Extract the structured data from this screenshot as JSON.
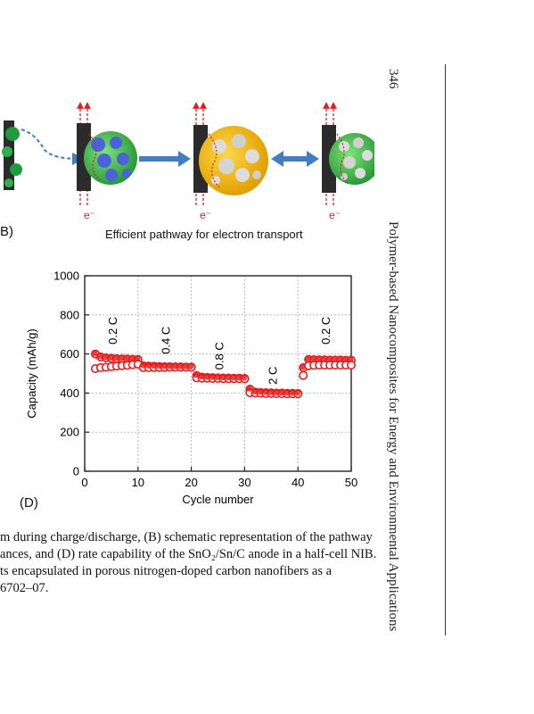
{
  "header": {
    "page_number": "346",
    "book_title": "Polymer-based Nanocomposites for Energy and Environmental Applications"
  },
  "panel_b": {
    "label": "B)",
    "caption": "Efficient pathway for electron transport",
    "electron_label": "e⁻"
  },
  "panel_d": {
    "label": "(D)"
  },
  "caption_lines": [
    "m during charge/discharge, (B) schematic representation of the pathway",
    "ances, and (D) rate capability of the SnO₂/Sn/C anode in a half-cell NIB.",
    "ts encapsulated in porous nitrogen-doped carbon nanofibers as a",
    "6702–07."
  ],
  "colors": {
    "marker_red": "#e11d1d",
    "arrow_blue": "#3f7fc1",
    "green_sphere": "#3fbf4f",
    "gold_sphere": "#f2b90f",
    "particle_blue": "#4a63d8"
  },
  "chart_data": {
    "type": "scatter",
    "xlabel": "Cycle number",
    "ylabel": "Capacity (mAh/g)",
    "xlim": [
      0,
      50
    ],
    "ylim": [
      0,
      1000
    ],
    "xticks": [
      0,
      10,
      20,
      30,
      40,
      50
    ],
    "yticks": [
      0,
      200,
      400,
      600,
      800,
      1000
    ],
    "grid": true,
    "rate_labels": [
      {
        "text": "0.2 C",
        "x": 6,
        "y": 720
      },
      {
        "text": "0.4 C",
        "x": 16,
        "y": 670
      },
      {
        "text": "0.8 C",
        "x": 26,
        "y": 590
      },
      {
        "text": "2 C",
        "x": 36,
        "y": 490
      },
      {
        "text": "0.2 C",
        "x": 46,
        "y": 720
      }
    ],
    "series": [
      {
        "values": [
          [
            2,
            600
          ],
          [
            3,
            585
          ],
          [
            4,
            580
          ],
          [
            5,
            578
          ],
          [
            6,
            576
          ],
          [
            7,
            575
          ],
          [
            8,
            574
          ],
          [
            9,
            573
          ],
          [
            10,
            572
          ],
          [
            11,
            540
          ],
          [
            12,
            538
          ],
          [
            13,
            537
          ],
          [
            14,
            536
          ],
          [
            15,
            535
          ],
          [
            16,
            535
          ],
          [
            17,
            534
          ],
          [
            18,
            534
          ],
          [
            19,
            533
          ],
          [
            20,
            533
          ],
          [
            21,
            490
          ],
          [
            22,
            482
          ],
          [
            23,
            480
          ],
          [
            24,
            479
          ],
          [
            25,
            478
          ],
          [
            26,
            477
          ],
          [
            27,
            477
          ],
          [
            28,
            476
          ],
          [
            29,
            476
          ],
          [
            30,
            475
          ],
          [
            31,
            420
          ],
          [
            32,
            405
          ],
          [
            33,
            403
          ],
          [
            34,
            402
          ],
          [
            35,
            401
          ],
          [
            36,
            400
          ],
          [
            37,
            400
          ],
          [
            38,
            399
          ],
          [
            39,
            399
          ],
          [
            40,
            398
          ],
          [
            41,
            530
          ],
          [
            42,
            572
          ],
          [
            43,
            571
          ],
          [
            44,
            570
          ],
          [
            45,
            570
          ],
          [
            46,
            569
          ],
          [
            47,
            569
          ],
          [
            48,
            569
          ],
          [
            49,
            568
          ],
          [
            50,
            568
          ]
        ]
      },
      {
        "values": [
          [
            2,
            525
          ],
          [
            3,
            530
          ],
          [
            4,
            532
          ],
          [
            5,
            535
          ],
          [
            6,
            538
          ],
          [
            7,
            540
          ],
          [
            8,
            542
          ],
          [
            9,
            545
          ],
          [
            10,
            548
          ],
          [
            11,
            530
          ],
          [
            12,
            530
          ],
          [
            13,
            531
          ],
          [
            14,
            531
          ],
          [
            15,
            531
          ],
          [
            16,
            532
          ],
          [
            17,
            532
          ],
          [
            18,
            532
          ],
          [
            19,
            532
          ],
          [
            20,
            532
          ],
          [
            21,
            478
          ],
          [
            22,
            476
          ],
          [
            23,
            476
          ],
          [
            24,
            475
          ],
          [
            25,
            475
          ],
          [
            26,
            474
          ],
          [
            27,
            474
          ],
          [
            28,
            474
          ],
          [
            29,
            474
          ],
          [
            30,
            473
          ],
          [
            31,
            402
          ],
          [
            32,
            400
          ],
          [
            33,
            399
          ],
          [
            34,
            398
          ],
          [
            35,
            398
          ],
          [
            36,
            397
          ],
          [
            37,
            397
          ],
          [
            38,
            396
          ],
          [
            39,
            396
          ],
          [
            40,
            396
          ],
          [
            41,
            490
          ],
          [
            42,
            540
          ],
          [
            43,
            542
          ],
          [
            44,
            543
          ],
          [
            45,
            543
          ],
          [
            46,
            543
          ],
          [
            47,
            543
          ],
          [
            48,
            543
          ],
          [
            49,
            543
          ],
          [
            50,
            543
          ]
        ]
      }
    ]
  }
}
